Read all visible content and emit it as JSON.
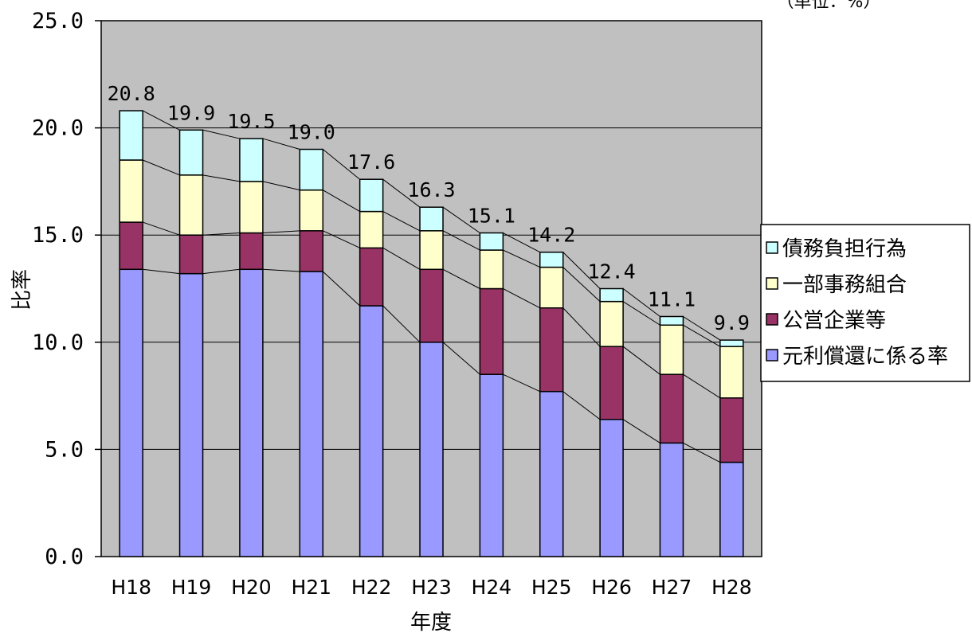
{
  "chart_data": {
    "type": "bar",
    "stacked": true,
    "categories": [
      "H18",
      "H19",
      "H20",
      "H21",
      "H22",
      "H23",
      "H24",
      "H25",
      "H26",
      "H27",
      "H28"
    ],
    "series": [
      {
        "name": "元利償還に係る率",
        "color": "#9999ff",
        "values": [
          13.4,
          13.2,
          13.4,
          13.3,
          11.7,
          10.0,
          8.5,
          7.7,
          6.4,
          5.3,
          4.4
        ]
      },
      {
        "name": "公営企業等",
        "color": "#993366",
        "values": [
          2.2,
          1.8,
          1.7,
          1.9,
          2.7,
          3.4,
          4.0,
          3.9,
          3.4,
          3.2,
          3.0
        ]
      },
      {
        "name": "一部事務組合",
        "color": "#ffffcc",
        "values": [
          2.9,
          2.8,
          2.4,
          1.9,
          1.7,
          1.8,
          1.8,
          1.9,
          2.1,
          2.3,
          2.4
        ]
      },
      {
        "name": "債務負担行為",
        "color": "#ccffff",
        "values": [
          2.3,
          2.1,
          2.0,
          1.9,
          1.5,
          1.1,
          0.8,
          0.7,
          0.6,
          0.4,
          0.3
        ]
      }
    ],
    "total_labels": [
      "20.8",
      "19.9",
      "19.5",
      "19.0",
      "17.6",
      "16.3",
      "15.1",
      "14.2",
      "12.4",
      "11.1",
      "9.9"
    ],
    "xlabel": "年度",
    "ylabel": "比率",
    "unit_note": "（単位：%）",
    "ylim": [
      0,
      25
    ],
    "yticks": [
      "0.0",
      "5.0",
      "10.0",
      "15.0",
      "20.0",
      "25.0"
    ],
    "grid": true,
    "plot_background": "#c0c0c0",
    "legend_position": "right",
    "legend_order": [
      "債務負担行為",
      "一部事務組合",
      "公営企業等",
      "元利償還に係る率"
    ]
  }
}
